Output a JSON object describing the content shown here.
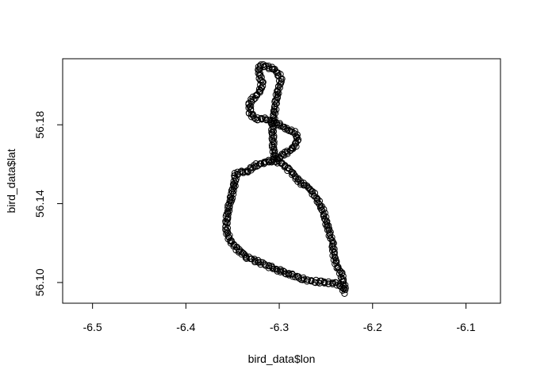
{
  "chart_data": {
    "type": "scatter",
    "title": "",
    "xlabel": "bird_data$lon",
    "ylabel": "bird_data$lat",
    "xlim": [
      -6.532,
      -6.063
    ],
    "ylim": [
      56.0895,
      56.2135
    ],
    "xticks": [
      -6.5,
      -6.4,
      -6.3,
      -6.2,
      -6.1
    ],
    "xtick_labels": [
      "-6.5",
      "-6.4",
      "-6.3",
      "-6.2",
      "-6.1"
    ],
    "yticks": [
      56.1,
      56.14,
      56.18
    ],
    "ytick_labels": [
      "56.10",
      "56.14",
      "56.18"
    ],
    "grid": false,
    "marker": "open-circle",
    "marker_color": "#000000",
    "series": [
      {
        "path": [
          [
            -6.23,
            56.095
          ],
          [
            -6.232,
            56.097
          ],
          [
            -6.236,
            56.099
          ],
          [
            -6.24,
            56.0995
          ],
          [
            -6.25,
            56.1
          ],
          [
            -6.26,
            56.1005
          ],
          [
            -6.27,
            56.101
          ],
          [
            -6.282,
            56.103
          ],
          [
            -6.3,
            56.106
          ],
          [
            -6.32,
            56.11
          ],
          [
            -6.335,
            56.113
          ],
          [
            -6.345,
            56.117
          ],
          [
            -6.352,
            56.121
          ],
          [
            -6.356,
            56.125
          ],
          [
            -6.357,
            56.13
          ],
          [
            -6.354,
            56.138
          ],
          [
            -6.351,
            56.144
          ],
          [
            -6.348,
            56.15
          ],
          [
            -6.347,
            56.155
          ],
          [
            -6.341,
            56.156
          ],
          [
            -6.335,
            56.156
          ],
          [
            -6.325,
            56.1595
          ],
          [
            -6.315,
            56.161
          ],
          [
            -6.305,
            56.162
          ],
          [
            -6.296,
            56.16
          ],
          [
            -6.287,
            56.156
          ],
          [
            -6.278,
            56.151
          ],
          [
            -6.268,
            56.148
          ],
          [
            -6.259,
            56.142
          ],
          [
            -6.253,
            56.136
          ],
          [
            -6.248,
            56.128
          ],
          [
            -6.243,
            56.12
          ],
          [
            -6.241,
            56.113
          ],
          [
            -6.238,
            56.108
          ],
          [
            -6.233,
            56.104
          ],
          [
            -6.231,
            56.1
          ],
          [
            -6.23,
            56.096
          ]
        ]
      },
      {
        "path": [
          [
            -6.305,
            56.162
          ],
          [
            -6.306,
            56.167
          ],
          [
            -6.307,
            56.173
          ],
          [
            -6.307,
            56.18
          ],
          [
            -6.305,
            56.187
          ],
          [
            -6.303,
            56.193
          ],
          [
            -6.301,
            56.198
          ],
          [
            -6.298,
            56.203
          ],
          [
            -6.3,
            56.205
          ],
          [
            -6.305,
            56.208
          ],
          [
            -6.315,
            56.21
          ],
          [
            -6.321,
            56.21
          ],
          [
            -6.322,
            56.206
          ],
          [
            -6.318,
            56.201
          ],
          [
            -6.322,
            56.196
          ],
          [
            -6.328,
            56.193
          ],
          [
            -6.332,
            56.191
          ],
          [
            -6.331,
            56.186
          ],
          [
            -6.326,
            56.183
          ],
          [
            -6.316,
            56.183
          ],
          [
            -6.304,
            56.181
          ],
          [
            -6.292,
            56.178
          ],
          [
            -6.283,
            56.176
          ],
          [
            -6.28,
            56.173
          ],
          [
            -6.282,
            56.17
          ],
          [
            -6.288,
            56.167
          ],
          [
            -6.296,
            56.165
          ],
          [
            -6.303,
            56.162
          ]
        ]
      }
    ]
  }
}
